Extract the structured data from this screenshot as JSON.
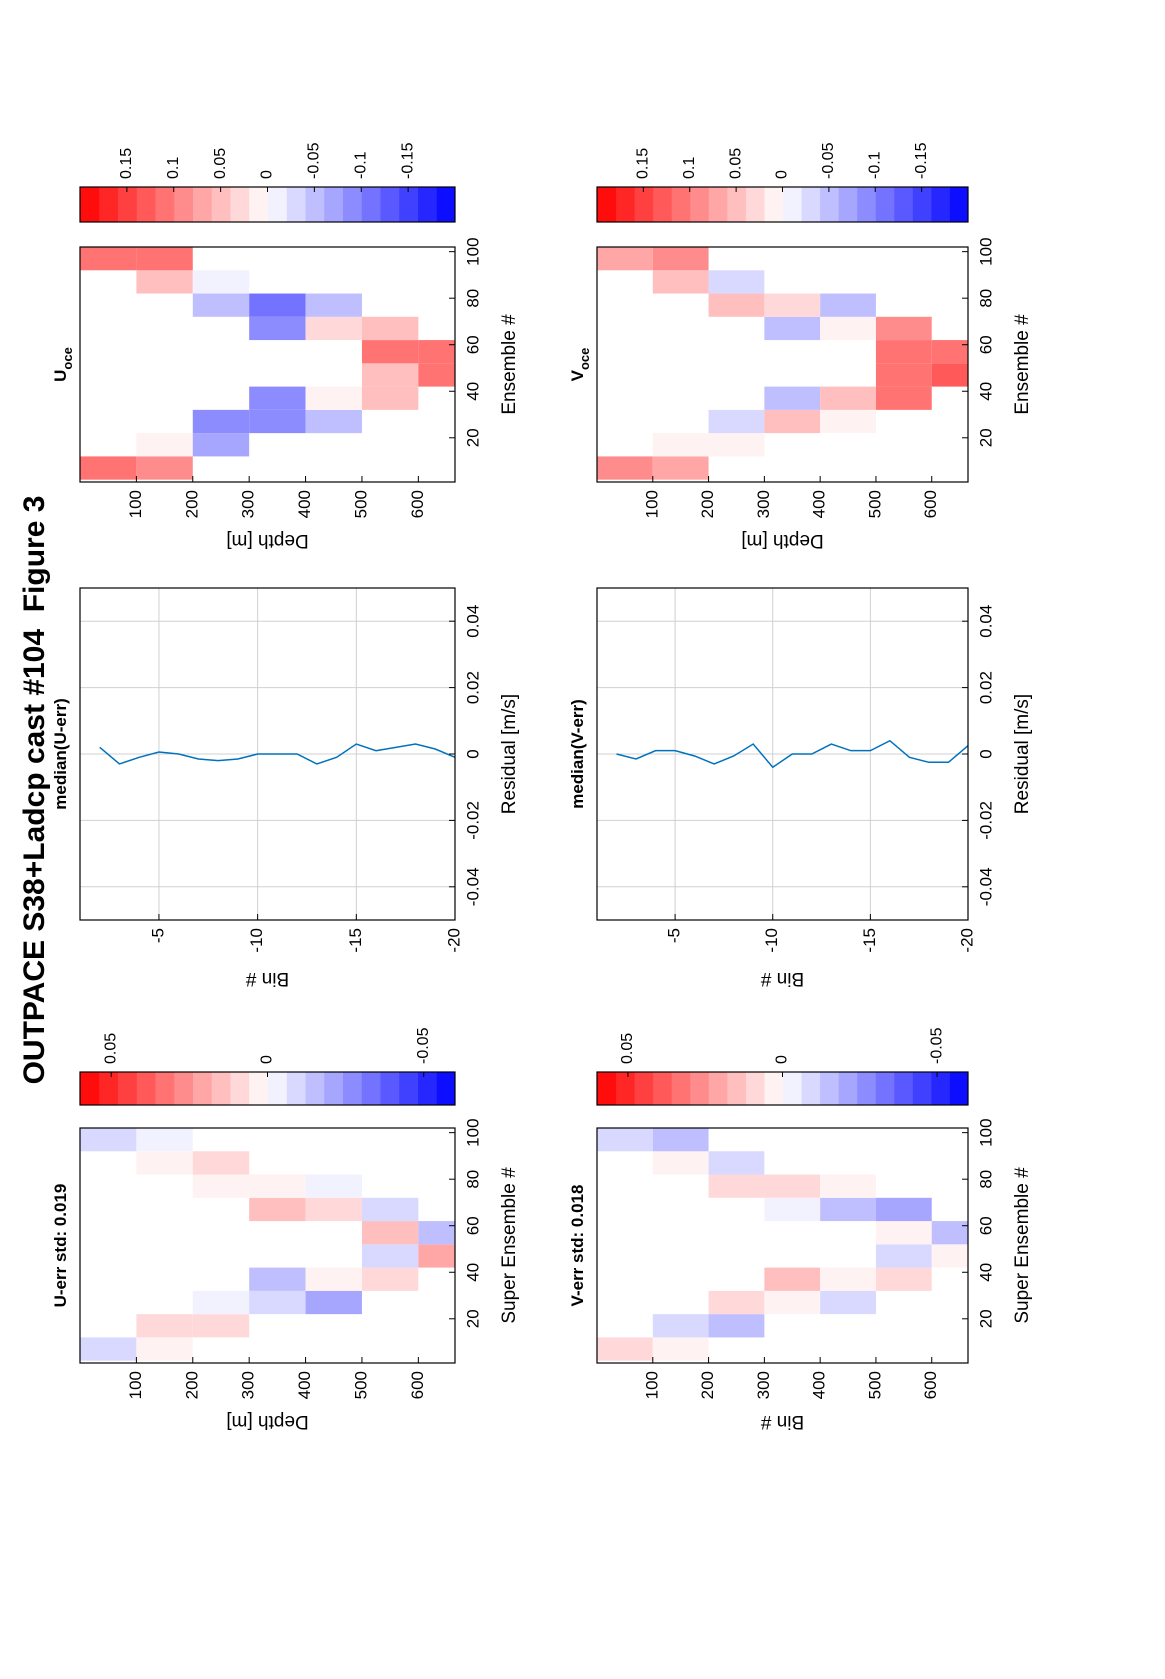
{
  "title": "OUTPACE S38+Ladcp cast #104  Figure 3",
  "chart_data": [
    {
      "type": "heatmap",
      "title": "U-err std: 0.019",
      "xlabel": "Super Ensemble #",
      "ylabel": "Depth [m]",
      "x": [
        7,
        17,
        27,
        37,
        47,
        57,
        67,
        77,
        87,
        97
      ],
      "y": [
        50,
        150,
        250,
        350,
        450,
        550,
        650
      ],
      "z": [
        [
          -0.01,
          null,
          null,
          null,
          null,
          null,
          null,
          null,
          null,
          -0.01
        ],
        [
          0.005,
          0.01,
          null,
          null,
          null,
          null,
          null,
          null,
          0.005,
          -0.005
        ],
        [
          null,
          0.01,
          -0.005,
          null,
          null,
          null,
          null,
          0,
          0.01,
          null
        ],
        [
          null,
          null,
          -0.01,
          -0.015,
          null,
          null,
          0.015,
          0.005,
          null,
          null
        ],
        [
          null,
          null,
          -0.02,
          0.005,
          null,
          null,
          0.01,
          -0.005,
          null,
          null
        ],
        [
          null,
          null,
          null,
          0.01,
          -0.01,
          0.015,
          -0.01,
          null,
          null,
          null
        ],
        [
          null,
          null,
          null,
          null,
          0.02,
          -0.015,
          null,
          null,
          null,
          null
        ]
      ],
      "xlim": [
        1,
        102
      ],
      "xticks": [
        20,
        40,
        60,
        80,
        100
      ],
      "ylim": [
        665,
        0
      ],
      "yticks": [
        100,
        200,
        300,
        400,
        500,
        600
      ],
      "clim": [
        -0.06,
        0.06
      ],
      "cticks": [
        0.05,
        0,
        -0.05
      ],
      "levels": 20,
      "colormap": [
        "#0000ff",
        "#ffffff",
        "#ff0000"
      ]
    },
    {
      "type": "line",
      "title": "median(U-err)",
      "xlabel": "Residual [m/s]",
      "ylabel": "Bin #",
      "color": "#0072bd",
      "grid": true,
      "y": [
        -2,
        -3,
        -4,
        -5,
        -6,
        -7,
        -8,
        -9,
        -10,
        -11,
        -12,
        -13,
        -14,
        -15,
        -16,
        -17,
        -18,
        -19,
        -20
      ],
      "values": [
        0.002,
        -0.003,
        -0.001,
        0.0006,
        0,
        -0.0015,
        -0.002,
        -0.0015,
        0,
        0,
        0,
        -0.003,
        -0.001,
        0.003,
        0.001,
        0.002,
        0.003,
        0.0015,
        -0.001
      ],
      "xlim": [
        -0.05,
        0.05
      ],
      "xticks": [
        -0.04,
        -0.02,
        0,
        0.02,
        0.04
      ],
      "ylim": [
        -20,
        -1
      ],
      "yticks": [
        -5,
        -10,
        -15,
        -20
      ]
    },
    {
      "type": "heatmap",
      "title": "U",
      "title_sub": "oce",
      "xlabel": "Ensemble #",
      "ylabel": "Depth [m]",
      "x": [
        7,
        17,
        27,
        37,
        47,
        57,
        67,
        77,
        87,
        97
      ],
      "y": [
        50,
        150,
        250,
        350,
        450,
        550,
        650
      ],
      "z": [
        [
          0.1,
          null,
          null,
          null,
          null,
          null,
          null,
          null,
          null,
          0.1
        ],
        [
          0.08,
          0,
          null,
          null,
          null,
          null,
          null,
          null,
          0.05,
          0.1
        ],
        [
          null,
          -0.08,
          -0.1,
          null,
          null,
          null,
          null,
          -0.06,
          -0.02,
          null
        ],
        [
          null,
          null,
          -0.1,
          -0.09,
          null,
          null,
          -0.1,
          -0.12,
          null,
          null
        ],
        [
          null,
          null,
          -0.05,
          0.02,
          null,
          null,
          0.03,
          -0.05,
          null,
          null
        ],
        [
          null,
          null,
          null,
          0.05,
          0.05,
          0.1,
          0.05,
          null,
          null,
          null
        ],
        [
          null,
          null,
          null,
          null,
          0.1,
          0.12,
          null,
          null,
          null,
          null
        ]
      ],
      "xlim": [
        1,
        102
      ],
      "xticks": [
        20,
        40,
        60,
        80,
        100
      ],
      "ylim": [
        665,
        0
      ],
      "yticks": [
        100,
        200,
        300,
        400,
        500,
        600
      ],
      "clim": [
        -0.2,
        0.2
      ],
      "cticks": [
        0.15,
        0.1,
        0.05,
        0,
        -0.05,
        -0.1,
        -0.15
      ],
      "levels": 20,
      "colormap": [
        "#0000ff",
        "#ffffff",
        "#ff0000"
      ]
    },
    {
      "type": "heatmap",
      "title": "V-err std: 0.018",
      "xlabel": "Super Ensemble #",
      "ylabel": "Bin #",
      "x": [
        7,
        17,
        27,
        37,
        47,
        57,
        67,
        77,
        87,
        97
      ],
      "y": [
        50,
        150,
        250,
        350,
        450,
        550,
        650
      ],
      "z": [
        [
          0.01,
          null,
          null,
          null,
          null,
          null,
          null,
          null,
          null,
          -0.01
        ],
        [
          0.005,
          -0.01,
          null,
          null,
          null,
          null,
          null,
          null,
          0.005,
          -0.015
        ],
        [
          null,
          -0.015,
          0.01,
          null,
          null,
          null,
          null,
          0.01,
          -0.01,
          null
        ],
        [
          null,
          null,
          0.005,
          0.015,
          null,
          null,
          -0.005,
          0.01,
          null,
          null
        ],
        [
          null,
          null,
          -0.01,
          0.005,
          null,
          null,
          -0.015,
          0.005,
          null,
          null
        ],
        [
          null,
          null,
          null,
          0.01,
          -0.01,
          0.005,
          -0.02,
          null,
          null,
          null
        ],
        [
          null,
          null,
          null,
          null,
          0.005,
          -0.015,
          null,
          null,
          null,
          null
        ]
      ],
      "xlim": [
        1,
        102
      ],
      "xticks": [
        20,
        40,
        60,
        80,
        100
      ],
      "ylim": [
        665,
        0
      ],
      "yticks": [
        100,
        200,
        300,
        400,
        500,
        600
      ],
      "clim": [
        -0.06,
        0.06
      ],
      "cticks": [
        0.05,
        0,
        -0.05
      ],
      "levels": 20,
      "colormap": [
        "#0000ff",
        "#ffffff",
        "#ff0000"
      ]
    },
    {
      "type": "line",
      "title": "median(V-err)",
      "xlabel": "Residual [m/s]",
      "ylabel": "Bin #",
      "color": "#0072bd",
      "grid": true,
      "y": [
        -2,
        -3,
        -4,
        -5,
        -6,
        -7,
        -8,
        -9,
        -10,
        -11,
        -12,
        -13,
        -14,
        -15,
        -16,
        -17,
        -18,
        -19,
        -20
      ],
      "values": [
        0,
        -0.0015,
        0.001,
        0.001,
        -0.0006,
        -0.003,
        -0.0006,
        0.003,
        -0.004,
        0,
        0,
        0.003,
        0.001,
        0.001,
        0.004,
        -0.001,
        -0.0025,
        -0.0025,
        0.0025
      ],
      "xlim": [
        -0.05,
        0.05
      ],
      "xticks": [
        -0.04,
        -0.02,
        0,
        0.02,
        0.04
      ],
      "ylim": [
        -20,
        -1
      ],
      "yticks": [
        -5,
        -10,
        -15,
        -20
      ]
    },
    {
      "type": "heatmap",
      "title": "V",
      "title_sub": "oce",
      "xlabel": "Ensemble #",
      "ylabel": "Depth [m]",
      "x": [
        7,
        17,
        27,
        37,
        47,
        57,
        67,
        77,
        87,
        97
      ],
      "y": [
        50,
        150,
        250,
        350,
        450,
        550,
        650
      ],
      "z": [
        [
          0.08,
          null,
          null,
          null,
          null,
          null,
          null,
          null,
          null,
          0.06
        ],
        [
          0.06,
          0.02,
          null,
          null,
          null,
          null,
          null,
          null,
          0.05,
          0.08
        ],
        [
          null,
          0.02,
          -0.03,
          null,
          null,
          null,
          null,
          0.05,
          -0.03,
          null
        ],
        [
          null,
          null,
          0.04,
          -0.04,
          null,
          null,
          -0.05,
          0.03,
          null,
          null
        ],
        [
          null,
          null,
          0.02,
          0.05,
          null,
          null,
          0.02,
          -0.04,
          null,
          null
        ],
        [
          null,
          null,
          null,
          0.1,
          0.12,
          0.1,
          0.08,
          null,
          null,
          null
        ],
        [
          null,
          null,
          null,
          null,
          0.13,
          0.12,
          null,
          null,
          null,
          null
        ]
      ],
      "xlim": [
        1,
        102
      ],
      "xticks": [
        20,
        40,
        60,
        80,
        100
      ],
      "ylim": [
        665,
        0
      ],
      "yticks": [
        100,
        200,
        300,
        400,
        500,
        600
      ],
      "clim": [
        -0.2,
        0.2
      ],
      "cticks": [
        0.15,
        0.1,
        0.05,
        0,
        -0.05,
        -0.1,
        -0.15
      ],
      "levels": 20,
      "colormap": [
        "#0000ff",
        "#ffffff",
        "#ff0000"
      ]
    }
  ]
}
